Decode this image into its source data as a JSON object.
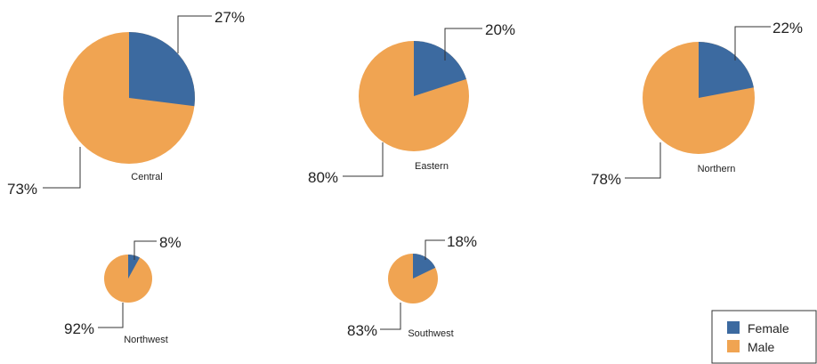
{
  "chart_data": {
    "type": "pie",
    "colors": {
      "Female": "#3c6aa0",
      "Male": "#f0a452"
    },
    "series": [
      "Female",
      "Male"
    ],
    "pies": [
      {
        "name": "Central",
        "values": {
          "Female": 27,
          "Male": 73
        },
        "labels": {
          "Female": "27%",
          "Male": "73%"
        }
      },
      {
        "name": "Eastern",
        "values": {
          "Female": 20,
          "Male": 80
        },
        "labels": {
          "Female": "20%",
          "Male": "80%"
        }
      },
      {
        "name": "Northern",
        "values": {
          "Female": 22,
          "Male": 78
        },
        "labels": {
          "Female": "22%",
          "Male": "78%"
        }
      },
      {
        "name": "Northwest",
        "values": {
          "Female": 8,
          "Male": 92
        },
        "labels": {
          "Female": "8%",
          "Male": "92%"
        }
      },
      {
        "name": "Southwest",
        "values": {
          "Female": 18,
          "Male": 83
        },
        "labels": {
          "Female": "18%",
          "Male": "83%"
        }
      }
    ],
    "legend": {
      "position": "bottom-right",
      "entries": [
        "Female",
        "Male"
      ]
    }
  }
}
